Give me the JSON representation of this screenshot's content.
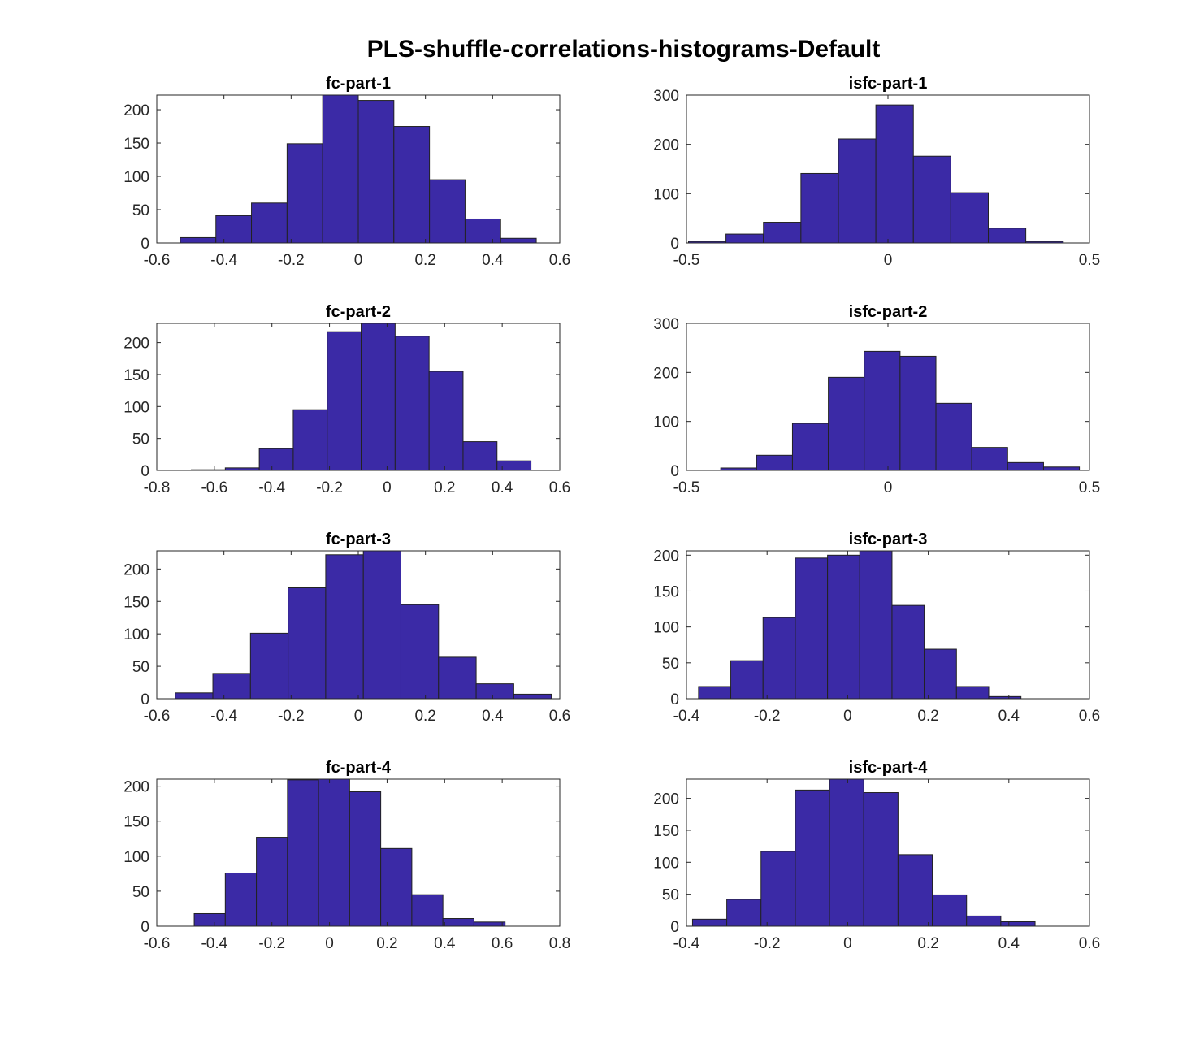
{
  "figure": {
    "title": "PLS-shuffle-correlations-histograms-Default",
    "bar_color": "#3B2AA6",
    "edge_color": "#222222"
  },
  "chart_data": [
    {
      "type": "bar",
      "title": "fc-part-1",
      "xlim": [
        -0.6,
        0.6
      ],
      "ylim": [
        0,
        222
      ],
      "xticks": [
        -0.6,
        -0.4,
        -0.2,
        0,
        0.2,
        0.4,
        0.6
      ],
      "xtick_labels": [
        "-0.6",
        "-0.4",
        "-0.2",
        "0",
        "0.2",
        "0.4",
        "0.6"
      ],
      "yticks": [
        0,
        50,
        100,
        150,
        200
      ],
      "ytick_labels": [
        "0",
        "50",
        "100",
        "150",
        "200"
      ],
      "bin_edges": [
        -0.53,
        -0.424,
        -0.318,
        -0.212,
        -0.106,
        0.0,
        0.106,
        0.212,
        0.318,
        0.424,
        0.53
      ],
      "counts": [
        8,
        41,
        60,
        149,
        222,
        214,
        175,
        95,
        36,
        7
      ]
    },
    {
      "type": "bar",
      "title": "isfc-part-1",
      "xlim": [
        -0.5,
        0.5
      ],
      "ylim": [
        0,
        300
      ],
      "xticks": [
        -0.5,
        0,
        0.5
      ],
      "xtick_labels": [
        "-0.5",
        "0",
        "0.5"
      ],
      "yticks": [
        0,
        100,
        200,
        300
      ],
      "ytick_labels": [
        "0",
        "100",
        "200",
        "300"
      ],
      "bin_edges": [
        -0.495,
        -0.402,
        -0.309,
        -0.216,
        -0.123,
        -0.03,
        0.063,
        0.156,
        0.249,
        0.342,
        0.435
      ],
      "counts": [
        3,
        18,
        42,
        141,
        211,
        280,
        176,
        102,
        30,
        3
      ]
    },
    {
      "type": "bar",
      "title": "fc-part-2",
      "xlim": [
        -0.8,
        0.6
      ],
      "ylim": [
        0,
        230
      ],
      "xticks": [
        -0.8,
        -0.6,
        -0.4,
        -0.2,
        0,
        0.2,
        0.4,
        0.6
      ],
      "xtick_labels": [
        "-0.8",
        "-0.6",
        "-0.4",
        "-0.2",
        "0",
        "0.2",
        "0.4",
        "0.6"
      ],
      "yticks": [
        0,
        50,
        100,
        150,
        200
      ],
      "ytick_labels": [
        "0",
        "50",
        "100",
        "150",
        "200"
      ],
      "bin_edges": [
        -0.68,
        -0.562,
        -0.444,
        -0.326,
        -0.208,
        -0.09,
        0.028,
        0.146,
        0.264,
        0.382,
        0.5
      ],
      "counts": [
        1,
        4,
        34,
        95,
        217,
        230,
        210,
        155,
        45,
        15
      ]
    },
    {
      "type": "bar",
      "title": "isfc-part-2",
      "xlim": [
        -0.5,
        0.5
      ],
      "ylim": [
        0,
        300
      ],
      "xticks": [
        -0.5,
        0,
        0.5
      ],
      "xtick_labels": [
        "-0.5",
        "0",
        "0.5"
      ],
      "yticks": [
        0,
        100,
        200,
        300
      ],
      "ytick_labels": [
        "0",
        "100",
        "200",
        "300"
      ],
      "bin_edges": [
        -0.415,
        -0.326,
        -0.237,
        -0.148,
        -0.059,
        0.03,
        0.119,
        0.208,
        0.297,
        0.386,
        0.475
      ],
      "counts": [
        5,
        31,
        96,
        190,
        243,
        233,
        137,
        47,
        16,
        7
      ]
    },
    {
      "type": "bar",
      "title": "fc-part-3",
      "xlim": [
        -0.6,
        0.6
      ],
      "ylim": [
        0,
        228
      ],
      "xticks": [
        -0.6,
        -0.4,
        -0.2,
        0,
        0.2,
        0.4,
        0.6
      ],
      "xtick_labels": [
        "-0.6",
        "-0.4",
        "-0.2",
        "0",
        "0.2",
        "0.4",
        "0.6"
      ],
      "yticks": [
        0,
        50,
        100,
        150,
        200
      ],
      "ytick_labels": [
        "0",
        "50",
        "100",
        "150",
        "200"
      ],
      "bin_edges": [
        -0.545,
        -0.433,
        -0.321,
        -0.209,
        -0.097,
        0.015,
        0.127,
        0.239,
        0.351,
        0.463,
        0.575
      ],
      "counts": [
        9,
        39,
        101,
        171,
        222,
        228,
        145,
        64,
        23,
        7
      ]
    },
    {
      "type": "bar",
      "title": "isfc-part-3",
      "xlim": [
        -0.4,
        0.6
      ],
      "ylim": [
        0,
        206
      ],
      "xticks": [
        -0.4,
        -0.2,
        0,
        0.2,
        0.4,
        0.6
      ],
      "xtick_labels": [
        "-0.4",
        "-0.2",
        "0",
        "0.2",
        "0.4",
        "0.6"
      ],
      "yticks": [
        0,
        50,
        100,
        150,
        200
      ],
      "ytick_labels": [
        "0",
        "50",
        "100",
        "150",
        "200"
      ],
      "bin_edges": [
        -0.37,
        -0.29,
        -0.21,
        -0.13,
        -0.05,
        0.03,
        0.11,
        0.19,
        0.27,
        0.35,
        0.43
      ],
      "counts": [
        17,
        53,
        113,
        196,
        200,
        206,
        130,
        69,
        17,
        3
      ]
    },
    {
      "type": "bar",
      "title": "fc-part-4",
      "xlim": [
        -0.6,
        0.8
      ],
      "ylim": [
        0,
        210
      ],
      "xticks": [
        -0.6,
        -0.4,
        -0.2,
        0,
        0.2,
        0.4,
        0.6,
        0.8
      ],
      "xtick_labels": [
        "-0.6",
        "-0.4",
        "-0.2",
        "0",
        "0.2",
        "0.4",
        "0.6",
        "0.8"
      ],
      "yticks": [
        0,
        50,
        100,
        150,
        200
      ],
      "ytick_labels": [
        "0",
        "50",
        "100",
        "150",
        "200"
      ],
      "bin_edges": [
        -0.47,
        -0.362,
        -0.254,
        -0.146,
        -0.038,
        0.07,
        0.178,
        0.286,
        0.394,
        0.502,
        0.61
      ],
      "counts": [
        18,
        76,
        127,
        209,
        210,
        192,
        111,
        45,
        11,
        6
      ]
    },
    {
      "type": "bar",
      "title": "isfc-part-4",
      "xlim": [
        -0.4,
        0.6
      ],
      "ylim": [
        0,
        230
      ],
      "xticks": [
        -0.4,
        -0.2,
        0,
        0.2,
        0.4,
        0.6
      ],
      "xtick_labels": [
        "-0.4",
        "-0.2",
        "0",
        "0.2",
        "0.4",
        "0.6"
      ],
      "yticks": [
        0,
        50,
        100,
        150,
        200
      ],
      "ytick_labels": [
        "0",
        "50",
        "100",
        "150",
        "200"
      ],
      "bin_edges": [
        -0.385,
        -0.3,
        -0.215,
        -0.13,
        -0.045,
        0.04,
        0.125,
        0.21,
        0.295,
        0.38,
        0.465
      ],
      "counts": [
        11,
        42,
        117,
        213,
        230,
        209,
        112,
        49,
        16,
        7
      ]
    }
  ]
}
